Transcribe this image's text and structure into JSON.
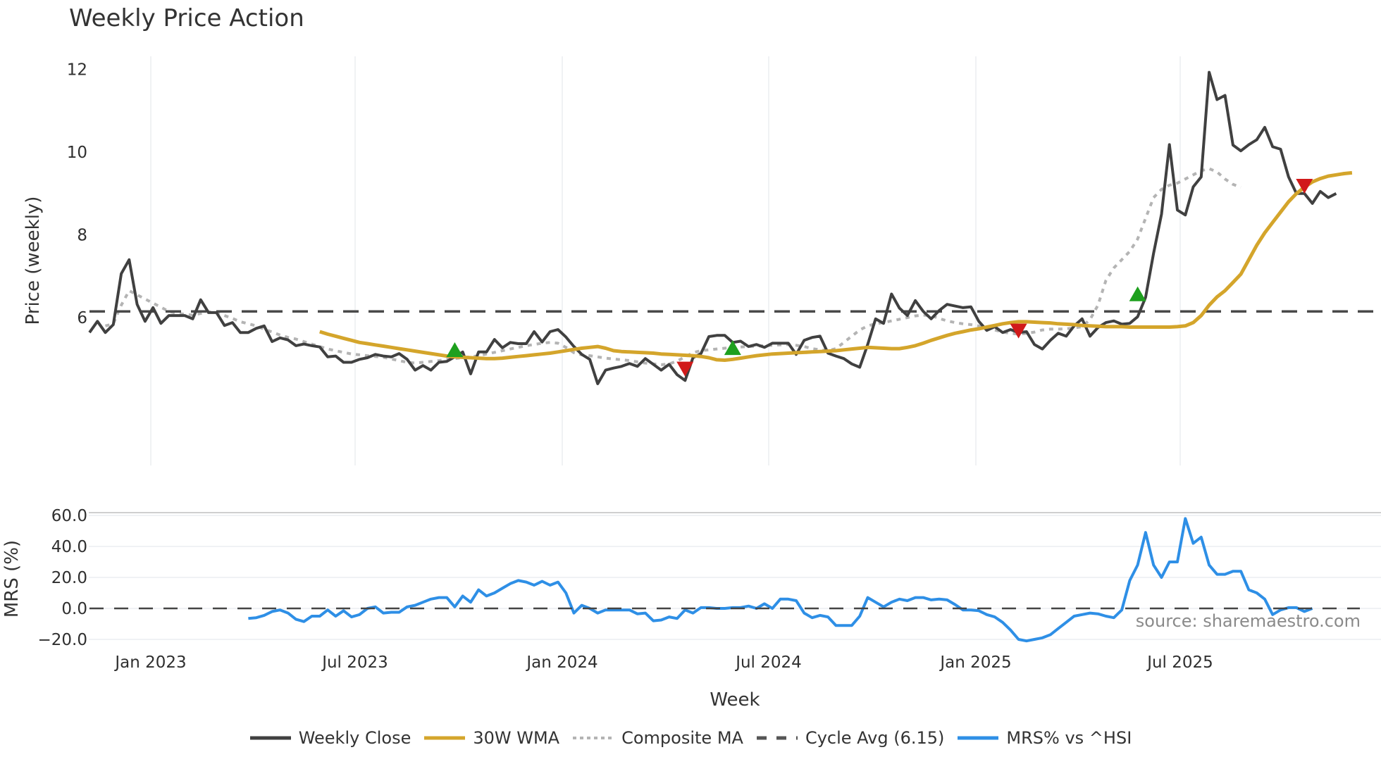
{
  "title": "Weekly Price Action",
  "source": "source: sharemaestro.com",
  "chart_data": [
    {
      "type": "line",
      "title": "Weekly Price Action",
      "xlabel": "Week",
      "ylabel": "Price (weekly)",
      "x_ticks": [
        "Jan 2023",
        "Jul 2023",
        "Jan 2024",
        "Jul 2024",
        "Jan 2025",
        "Jul 2025"
      ],
      "y_ticks": [
        6,
        8,
        10,
        12
      ],
      "ylim": [
        2.4,
        12.4
      ],
      "grid": true,
      "x_start": "Nov 2022",
      "x_unit": "week",
      "series": [
        {
          "name": "Weekly Close",
          "color": "#404040",
          "start_index": 0,
          "values": [
            5.64,
            5.91,
            5.64,
            5.83,
            7.06,
            7.4,
            6.32,
            5.91,
            6.24,
            5.86,
            6.05,
            6.05,
            6.05,
            5.97,
            6.43,
            6.12,
            6.12,
            5.81,
            5.88,
            5.64,
            5.64,
            5.74,
            5.8,
            5.42,
            5.51,
            5.46,
            5.32,
            5.36,
            5.32,
            5.29,
            5.05,
            5.07,
            4.92,
            4.92,
            4.99,
            5.03,
            5.11,
            5.07,
            5.05,
            5.13,
            4.99,
            4.73,
            4.84,
            4.73,
            4.92,
            4.94,
            5.05,
            5.17,
            4.64,
            5.17,
            5.17,
            5.47,
            5.27,
            5.4,
            5.37,
            5.37,
            5.66,
            5.41,
            5.66,
            5.71,
            5.53,
            5.3,
            5.11,
            4.99,
            4.4,
            4.73,
            4.78,
            4.82,
            4.89,
            4.82,
            5.01,
            4.87,
            4.73,
            4.87,
            4.62,
            4.48,
            5.03,
            5.13,
            5.54,
            5.57,
            5.57,
            5.4,
            5.43,
            5.3,
            5.35,
            5.28,
            5.38,
            5.38,
            5.38,
            5.11,
            5.45,
            5.52,
            5.55,
            5.14,
            5.07,
            5.01,
            4.88,
            4.8,
            5.35,
            5.97,
            5.86,
            6.57,
            6.23,
            6.05,
            6.41,
            6.15,
            5.97,
            6.17,
            6.32,
            6.28,
            6.24,
            6.26,
            5.91,
            5.69,
            5.78,
            5.64,
            5.71,
            5.64,
            5.66,
            5.35,
            5.24,
            5.45,
            5.62,
            5.55,
            5.8,
            5.97,
            5.55,
            5.76,
            5.88,
            5.92,
            5.84,
            5.86,
            6.02,
            6.49,
            7.55,
            8.5,
            10.18,
            8.6,
            8.48,
            9.16,
            9.4,
            11.93,
            11.27,
            11.37,
            10.17,
            10.03,
            10.18,
            10.3,
            10.6,
            10.13,
            10.07,
            9.4,
            9.0,
            9.0,
            8.76,
            9.05,
            8.9,
            9.0
          ]
        },
        {
          "name": "30W WMA",
          "color": "#d4a52b",
          "start_index": 29,
          "values": [
            5.66,
            5.6,
            5.55,
            5.5,
            5.45,
            5.4,
            5.37,
            5.34,
            5.31,
            5.28,
            5.25,
            5.22,
            5.19,
            5.16,
            5.13,
            5.1,
            5.07,
            5.05,
            5.04,
            5.03,
            5.02,
            5.01,
            5.01,
            5.02,
            5.04,
            5.06,
            5.08,
            5.1,
            5.12,
            5.14,
            5.17,
            5.2,
            5.23,
            5.26,
            5.28,
            5.3,
            5.26,
            5.2,
            5.18,
            5.17,
            5.16,
            5.15,
            5.14,
            5.12,
            5.11,
            5.1,
            5.09,
            5.08,
            5.06,
            5.03,
            4.98,
            4.97,
            4.99,
            5.02,
            5.05,
            5.08,
            5.1,
            5.12,
            5.13,
            5.14,
            5.15,
            5.16,
            5.17,
            5.18,
            5.19,
            5.2,
            5.22,
            5.24,
            5.26,
            5.28,
            5.27,
            5.26,
            5.25,
            5.25,
            5.28,
            5.32,
            5.38,
            5.45,
            5.51,
            5.57,
            5.62,
            5.66,
            5.7,
            5.73,
            5.77,
            5.81,
            5.85,
            5.88,
            5.9,
            5.9,
            5.89,
            5.88,
            5.87,
            5.85,
            5.84,
            5.83,
            5.81,
            5.8,
            5.79,
            5.78,
            5.78,
            5.78,
            5.77,
            5.77,
            5.77,
            5.77,
            5.77,
            5.77,
            5.78,
            5.8,
            5.88,
            6.05,
            6.3,
            6.5,
            6.65,
            6.85,
            7.05,
            7.4,
            7.75,
            8.05,
            8.3,
            8.55,
            8.8,
            9.0,
            9.15,
            9.28,
            9.36,
            9.42,
            9.45,
            9.48,
            9.5
          ]
        },
        {
          "name": "Composite MA",
          "color": "#b4b4b4",
          "start_index": 2,
          "values": [
            5.8,
            5.85,
            6.3,
            6.65,
            6.55,
            6.45,
            6.35,
            6.25,
            6.15,
            6.1,
            6.08,
            6.06,
            6.1,
            6.14,
            6.12,
            6.05,
            5.98,
            5.9,
            5.85,
            5.8,
            5.72,
            5.65,
            5.58,
            5.52,
            5.48,
            5.42,
            5.36,
            5.3,
            5.24,
            5.2,
            5.16,
            5.12,
            5.1,
            5.08,
            5.06,
            5.04,
            5.0,
            4.96,
            4.92,
            4.9,
            4.92,
            4.94,
            4.96,
            4.99,
            5.01,
            5.03,
            5.05,
            5.08,
            5.12,
            5.16,
            5.2,
            5.24,
            5.28,
            5.32,
            5.35,
            5.38,
            5.4,
            5.38,
            5.28,
            5.15,
            5.1,
            5.08,
            5.05,
            5.02,
            5.0,
            4.98,
            4.96,
            4.93,
            4.9,
            4.88,
            4.86,
            4.88,
            4.95,
            5.05,
            5.15,
            5.2,
            5.22,
            5.24,
            5.26,
            5.28,
            5.29,
            5.3,
            5.31,
            5.32,
            5.33,
            5.34,
            5.35,
            5.33,
            5.3,
            5.25,
            5.22,
            5.2,
            5.25,
            5.4,
            5.55,
            5.7,
            5.8,
            5.85,
            5.88,
            5.92,
            5.96,
            6.0,
            6.04,
            6.06,
            6.05,
            5.98,
            5.92,
            5.88,
            5.85,
            5.83,
            5.8,
            5.76,
            5.7,
            5.65,
            5.62,
            5.6,
            5.62,
            5.65,
            5.7,
            5.72,
            5.72,
            5.73,
            5.75,
            5.78,
            5.95,
            6.3,
            6.9,
            7.2,
            7.4,
            7.6,
            7.9,
            8.4,
            8.9,
            9.1,
            9.2,
            9.25,
            9.35,
            9.45,
            9.55,
            9.6,
            9.52,
            9.35,
            9.22,
            9.15
          ]
        },
        {
          "name": "Cycle Avg (6.15)",
          "color": "#4a4a4a",
          "value": 6.15
        }
      ],
      "markers": [
        {
          "type": "buy",
          "shape": "triangle-up",
          "color": "#1ea01e",
          "index": 46,
          "value": 5.2
        },
        {
          "type": "sell",
          "shape": "triangle-down",
          "color": "#d11a1a",
          "index": 75,
          "value": 4.78
        },
        {
          "type": "buy",
          "shape": "triangle-up",
          "color": "#1ea01e",
          "index": 81,
          "value": 5.25
        },
        {
          "type": "sell",
          "shape": "triangle-down",
          "color": "#d11a1a",
          "index": 117,
          "value": 5.7
        },
        {
          "type": "buy",
          "shape": "triangle-up",
          "color": "#1ea01e",
          "index": 132,
          "value": 6.55
        },
        {
          "type": "sell",
          "shape": "triangle-down",
          "color": "#d11a1a",
          "index": 153,
          "value": 9.2
        }
      ]
    },
    {
      "type": "line",
      "title": "",
      "xlabel": "Week",
      "ylabel": "MRS (%)",
      "y_ticks": [
        "60.0",
        "40.0",
        "20.0",
        "0.0",
        "−20.0"
      ],
      "y_tick_values": [
        60,
        40,
        20,
        0,
        -20
      ],
      "ylim": [
        -24,
        62
      ],
      "grid": true,
      "series": [
        {
          "name": "MRS% vs ^HSI",
          "color": "#2e8fe6",
          "start_index": 20,
          "values": [
            -6.5,
            -6,
            -4.5,
            -2,
            -1,
            -3,
            -7,
            -8.5,
            -5,
            -5,
            -1,
            -5,
            -1.5,
            -5.5,
            -4,
            0,
            1,
            -3,
            -2.5,
            -2.5,
            1,
            2,
            4,
            6,
            7,
            7,
            1,
            8,
            4,
            12,
            8,
            10,
            13,
            16,
            18,
            17,
            15,
            17.5,
            15,
            17,
            10,
            -3,
            2,
            0,
            -3,
            -1,
            -1,
            -1,
            -1,
            -3.5,
            -3,
            -8,
            -7.5,
            -5.5,
            -6.5,
            -1,
            -3,
            0.5,
            0.5,
            0,
            0,
            0.5,
            0.5,
            1.5,
            0,
            3,
            0,
            6,
            6,
            5,
            -3,
            -6,
            -4.5,
            -5.5,
            -11,
            -11,
            -11,
            -5,
            7,
            4,
            1,
            4,
            6,
            5,
            7,
            7,
            5.5,
            6,
            5.5,
            2.5,
            -1,
            -1,
            -1.5,
            -4,
            -5.5,
            -9,
            -14,
            -20,
            -21,
            -20,
            -19,
            -17,
            -13,
            -9,
            -5,
            -4,
            -3,
            -3.5,
            -5,
            -6,
            -1,
            18,
            28,
            49,
            28,
            20,
            30,
            30,
            58,
            42,
            46,
            28,
            22,
            22,
            24,
            24,
            12,
            10,
            6,
            -4,
            -1,
            0.5,
            0.5,
            -2,
            0
          ]
        },
        {
          "name": "Zero line",
          "color": "#444444",
          "value": 0
        }
      ],
      "annotations": [
        "source: sharemaestro.com"
      ]
    }
  ],
  "legend": [
    {
      "label": "Weekly Close",
      "style": "solid",
      "color": "#404040"
    },
    {
      "label": "30W WMA",
      "style": "solid",
      "color": "#d4a52b"
    },
    {
      "label": "Composite MA",
      "style": "dotted",
      "color": "#b4b4b4"
    },
    {
      "label": "Cycle Avg (6.15)",
      "style": "dashed",
      "color": "#555555"
    },
    {
      "label": "MRS% vs ^HSI",
      "style": "solid",
      "color": "#2e8fe6"
    }
  ]
}
